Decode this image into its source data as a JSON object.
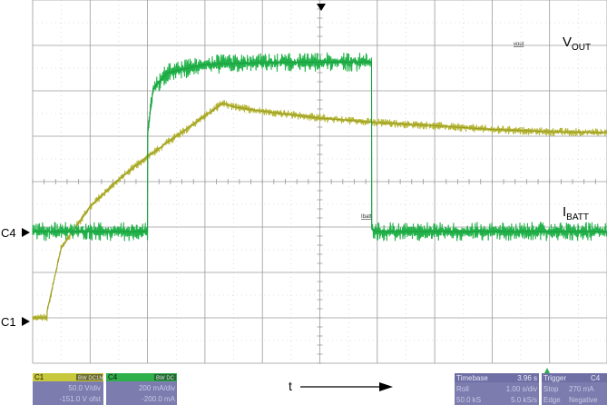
{
  "chart_data": {
    "type": "line",
    "grid": true,
    "title": "",
    "xlabel": "t",
    "ylabel": "",
    "series": [
      {
        "name": "VOUT",
        "probe_label": "vout",
        "channel": "C1",
        "color": "#b5b535",
        "points": [
          [
            0,
            0
          ],
          [
            0.25,
            0
          ],
          [
            0.25,
            0.15
          ],
          [
            0.5,
            1.55
          ],
          [
            1,
            2.45
          ],
          [
            1.5,
            3.05
          ],
          [
            2,
            3.55
          ],
          [
            2.5,
            4.0
          ],
          [
            3,
            4.45
          ],
          [
            3.3,
            4.72
          ],
          [
            3.5,
            4.65
          ],
          [
            4,
            4.55
          ],
          [
            5,
            4.4
          ],
          [
            6,
            4.3
          ],
          [
            7,
            4.23
          ],
          [
            8,
            4.15
          ],
          [
            9,
            4.1
          ],
          [
            10,
            4.08
          ]
        ],
        "noise": 0.07
      },
      {
        "name": "IBATT",
        "probe_label": "Ibatt",
        "channel": "C4",
        "color": "#22b24a",
        "points": [
          [
            0,
            0
          ],
          [
            2.0,
            0
          ],
          [
            2.0,
            2.15
          ],
          [
            2.1,
            3.15
          ],
          [
            2.35,
            3.5
          ],
          [
            3,
            3.68
          ],
          [
            4,
            3.72
          ],
          [
            5,
            3.73
          ],
          [
            5.9,
            3.74
          ],
          [
            5.9,
            0.05
          ],
          [
            6,
            0
          ],
          [
            10,
            0
          ]
        ],
        "noise": 0.17
      }
    ],
    "grid_divisions": {
      "x": 10,
      "y": 8
    }
  },
  "labels": {
    "vout": {
      "main": "V",
      "sub": "OUT"
    },
    "ibatt": {
      "main": "I",
      "sub": "BATT"
    },
    "c4_marker": "C4",
    "c1_marker": "C1",
    "time_axis": "t"
  },
  "status_panels": {
    "c1": {
      "id": "C1",
      "coupling": "BW DC1M",
      "vdiv": "50.0 V/div",
      "offset": "-151.0 V ofst"
    },
    "c4": {
      "id": "C4",
      "coupling": "BW DC",
      "vdiv": "200 mA/div",
      "offset": "-200.0 mA"
    },
    "timebase": {
      "label": "Timebase",
      "value": "3.96 s",
      "mode": "Roll",
      "div": "1.00 s/div",
      "samples": "50.0 kS",
      "rate": "5.0 kS/s"
    },
    "trigger": {
      "label": "Trigger",
      "channel": "C4",
      "mode": "Stop",
      "level": "270 mA",
      "type": "Edge",
      "slope": "Negative"
    }
  },
  "colors": {
    "grid_line": "#9a9a9a",
    "vout_trace": "#b5b535",
    "ibatt_trace": "#22b24a",
    "panel_bg": "#7c7cae",
    "c1_header": "#c8c83c",
    "c4_header": "#2faf4a",
    "panel_header": "#6f6fa6"
  }
}
